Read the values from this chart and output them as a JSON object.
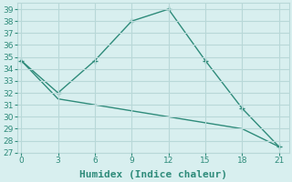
{
  "line1_x": [
    0,
    3,
    6,
    9,
    12,
    15,
    18,
    21
  ],
  "line1_y": [
    34.7,
    32.0,
    34.7,
    38.0,
    39.0,
    34.7,
    30.7,
    27.5
  ],
  "line2_x": [
    0,
    3,
    6,
    9,
    12,
    15,
    18,
    21
  ],
  "line2_y": [
    34.7,
    31.5,
    31.0,
    30.5,
    30.0,
    29.5,
    29.0,
    27.5
  ],
  "line_color": "#2e8b7a",
  "bg_color": "#d8efef",
  "grid_color": "#b8d8d8",
  "xlabel": "Humidex (Indice chaleur)",
  "ylim": [
    27,
    39.5
  ],
  "xlim": [
    -0.3,
    21.8
  ],
  "yticks": [
    27,
    28,
    29,
    30,
    31,
    32,
    33,
    34,
    35,
    36,
    37,
    38,
    39
  ],
  "xticks": [
    0,
    3,
    6,
    9,
    12,
    15,
    18,
    21
  ],
  "xlabel_fontsize": 8,
  "tick_fontsize": 6.5
}
